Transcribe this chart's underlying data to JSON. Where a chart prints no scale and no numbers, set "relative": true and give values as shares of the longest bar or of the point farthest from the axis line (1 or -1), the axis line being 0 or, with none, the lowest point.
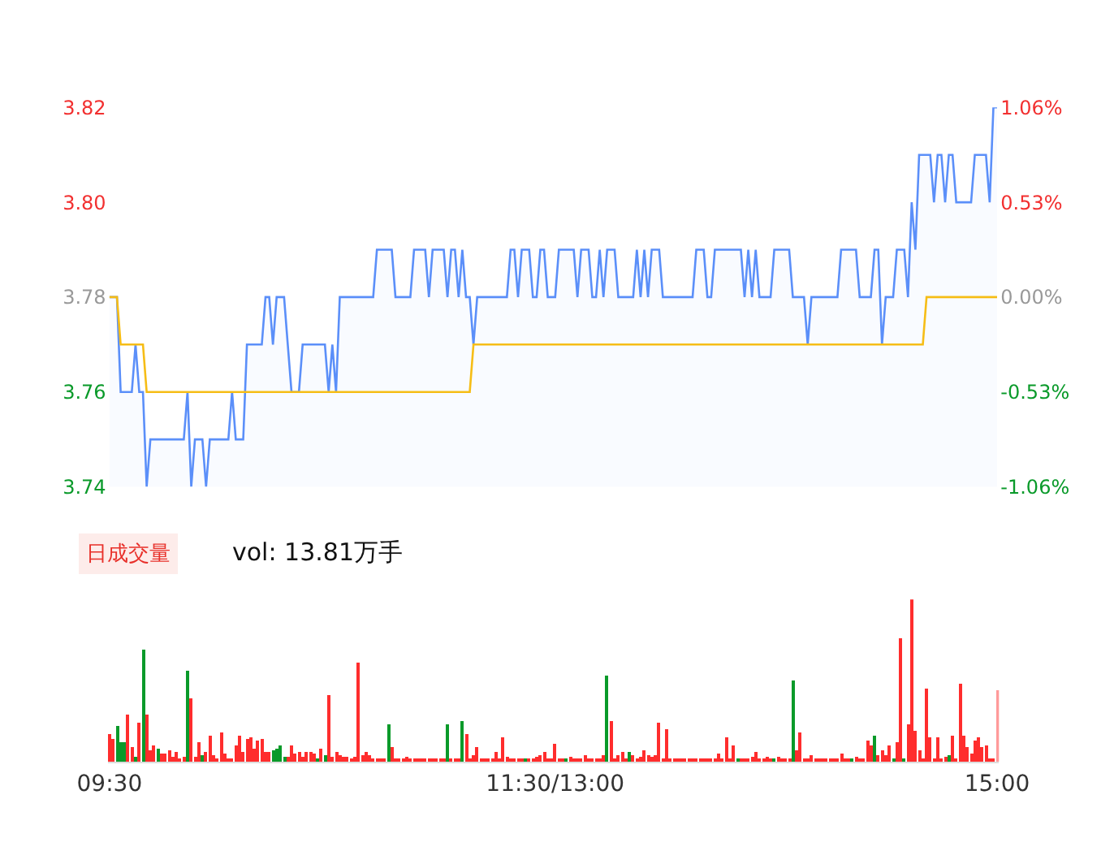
{
  "chart_data": [
    {
      "type": "line",
      "ylim": [
        3.74,
        3.82
      ],
      "tick_labels": "y",
      "yticks": [
        {
          "value": 3.74,
          "label": "3.74"
        },
        {
          "value": 3.76,
          "label": "3.76"
        },
        {
          "value": 3.78,
          "label": "3.78"
        },
        {
          "value": 3.8,
          "label": "3.80"
        },
        {
          "value": 3.82,
          "label": "3.82"
        }
      ],
      "y2lim": [
        -1.06,
        1.06
      ],
      "y2ticks": [
        {
          "value": -1.06,
          "label": "-1.06%"
        },
        {
          "value": -0.53,
          "label": "-0.53%"
        },
        {
          "value": 0,
          "label": "0.00%"
        },
        {
          "value": 0.53,
          "label": "0.53%"
        },
        {
          "value": 1.06,
          "label": "1.06%"
        }
      ],
      "series": [
        {
          "type": "area",
          "color": "#5b8ff9",
          "values": [
            3.78,
            3.78,
            3.78,
            3.76,
            3.76,
            3.76,
            3.76,
            3.77,
            3.76,
            3.76,
            3.74,
            3.75,
            3.75,
            3.75,
            3.75,
            3.75,
            3.75,
            3.75,
            3.75,
            3.75,
            3.75,
            3.76,
            3.74,
            3.75,
            3.75,
            3.75,
            3.74,
            3.75,
            3.75,
            3.75,
            3.75,
            3.75,
            3.75,
            3.76,
            3.75,
            3.75,
            3.75,
            3.77,
            3.77,
            3.77,
            3.77,
            3.77,
            3.78,
            3.78,
            3.77,
            3.78,
            3.78,
            3.78,
            3.77,
            3.76,
            3.76,
            3.76,
            3.77,
            3.77,
            3.77,
            3.77,
            3.77,
            3.77,
            3.77,
            3.76,
            3.77,
            3.76,
            3.78,
            3.78,
            3.78,
            3.78,
            3.78,
            3.78,
            3.78,
            3.78,
            3.78,
            3.78,
            3.79,
            3.79,
            3.79,
            3.79,
            3.79,
            3.78,
            3.78,
            3.78,
            3.78,
            3.78,
            3.79,
            3.79,
            3.79,
            3.79,
            3.78,
            3.79,
            3.79,
            3.79,
            3.79,
            3.78,
            3.79,
            3.79,
            3.78,
            3.79,
            3.78,
            3.78,
            3.77,
            3.78,
            3.78,
            3.78,
            3.78,
            3.78,
            3.78,
            3.78,
            3.78,
            3.78,
            3.79,
            3.79,
            3.78,
            3.79,
            3.79,
            3.79,
            3.78,
            3.78,
            3.79,
            3.79,
            3.78,
            3.78,
            3.78,
            3.79,
            3.79,
            3.79,
            3.79,
            3.79,
            3.78,
            3.79,
            3.79,
            3.79,
            3.78,
            3.78,
            3.79,
            3.78,
            3.79,
            3.79,
            3.79,
            3.78,
            3.78,
            3.78,
            3.78,
            3.78,
            3.79,
            3.78,
            3.79,
            3.78,
            3.79,
            3.79,
            3.79,
            3.78,
            3.78,
            3.78,
            3.78,
            3.78,
            3.78,
            3.78,
            3.78,
            3.78,
            3.79,
            3.79,
            3.79,
            3.78,
            3.78,
            3.79,
            3.79,
            3.79,
            3.79,
            3.79,
            3.79,
            3.79,
            3.79,
            3.78,
            3.79,
            3.78,
            3.79,
            3.78,
            3.78,
            3.78,
            3.78,
            3.79,
            3.79,
            3.79,
            3.79,
            3.79,
            3.78,
            3.78,
            3.78,
            3.78,
            3.77,
            3.78,
            3.78,
            3.78,
            3.78,
            3.78,
            3.78,
            3.78,
            3.78,
            3.79,
            3.79,
            3.79,
            3.79,
            3.79,
            3.78,
            3.78,
            3.78,
            3.78,
            3.79,
            3.79,
            3.77,
            3.78,
            3.78,
            3.78,
            3.79,
            3.79,
            3.79,
            3.78,
            3.8,
            3.79,
            3.81,
            3.81,
            3.81,
            3.81,
            3.8,
            3.81,
            3.81,
            3.8,
            3.81,
            3.81,
            3.8,
            3.8,
            3.8,
            3.8,
            3.8,
            3.81,
            3.81,
            3.81,
            3.81,
            3.8,
            3.82,
            3.82
          ]
        },
        {
          "type": "line",
          "color": "#f6bd16",
          "values": [
            3.78,
            3.78,
            3.78,
            3.77,
            3.77,
            3.77,
            3.77,
            3.77,
            3.77,
            3.77,
            3.76,
            3.76,
            3.76,
            3.76,
            3.76,
            3.76,
            3.76,
            3.76,
            3.76,
            3.76,
            3.76,
            3.76,
            3.76,
            3.76,
            3.76,
            3.76,
            3.76,
            3.76,
            3.76,
            3.76,
            3.76,
            3.76,
            3.76,
            3.76,
            3.76,
            3.76,
            3.76,
            3.76,
            3.76,
            3.76,
            3.76,
            3.76,
            3.76,
            3.76,
            3.76,
            3.76,
            3.76,
            3.76,
            3.76,
            3.76,
            3.76,
            3.76,
            3.76,
            3.76,
            3.76,
            3.76,
            3.76,
            3.76,
            3.76,
            3.76,
            3.76,
            3.76,
            3.76,
            3.76,
            3.76,
            3.76,
            3.76,
            3.76,
            3.76,
            3.76,
            3.76,
            3.76,
            3.76,
            3.76,
            3.76,
            3.76,
            3.76,
            3.76,
            3.76,
            3.76,
            3.76,
            3.76,
            3.76,
            3.76,
            3.76,
            3.76,
            3.76,
            3.76,
            3.76,
            3.76,
            3.76,
            3.76,
            3.76,
            3.76,
            3.76,
            3.76,
            3.76,
            3.76,
            3.77,
            3.77,
            3.77,
            3.77,
            3.77,
            3.77,
            3.77,
            3.77,
            3.77,
            3.77,
            3.77,
            3.77,
            3.77,
            3.77,
            3.77,
            3.77,
            3.77,
            3.77,
            3.77,
            3.77,
            3.77,
            3.77,
            3.77,
            3.77,
            3.77,
            3.77,
            3.77,
            3.77,
            3.77,
            3.77,
            3.77,
            3.77,
            3.77,
            3.77,
            3.77,
            3.77,
            3.77,
            3.77,
            3.77,
            3.77,
            3.77,
            3.77,
            3.77,
            3.77,
            3.77,
            3.77,
            3.77,
            3.77,
            3.77,
            3.77,
            3.77,
            3.77,
            3.77,
            3.77,
            3.77,
            3.77,
            3.77,
            3.77,
            3.77,
            3.77,
            3.77,
            3.77,
            3.77,
            3.77,
            3.77,
            3.77,
            3.77,
            3.77,
            3.77,
            3.77,
            3.77,
            3.77,
            3.77,
            3.77,
            3.77,
            3.77,
            3.77,
            3.77,
            3.77,
            3.77,
            3.77,
            3.77,
            3.77,
            3.77,
            3.77,
            3.77,
            3.77,
            3.77,
            3.77,
            3.77,
            3.77,
            3.77,
            3.77,
            3.77,
            3.77,
            3.77,
            3.77,
            3.77,
            3.77,
            3.77,
            3.77,
            3.77,
            3.77,
            3.77,
            3.77,
            3.77,
            3.77,
            3.77,
            3.77,
            3.77,
            3.77,
            3.77,
            3.77,
            3.77,
            3.77,
            3.77,
            3.77,
            3.77,
            3.77,
            3.77,
            3.77,
            3.77,
            3.78,
            3.78,
            3.78,
            3.78,
            3.78,
            3.78,
            3.78,
            3.78,
            3.78,
            3.78,
            3.78,
            3.78,
            3.78,
            3.78,
            3.78,
            3.78,
            3.78,
            3.78,
            3.78,
            3.78
          ]
        }
      ]
    },
    {
      "type": "bar",
      "relative": true,
      "tick_labels": "x",
      "annotations": [
        "日成交量",
        "vol: 13.81万手"
      ],
      "categories": [
        "09:30",
        null,
        null,
        null,
        null,
        null,
        null,
        null,
        null,
        null,
        null,
        null,
        null,
        null,
        null,
        null,
        null,
        null,
        null,
        null,
        null,
        null,
        null,
        null,
        null,
        null,
        null,
        null,
        null,
        null,
        null,
        null,
        null,
        null,
        null,
        null,
        null,
        null,
        null,
        null,
        null,
        null,
        null,
        null,
        null,
        null,
        null,
        null,
        null,
        null,
        null,
        null,
        null,
        null,
        null,
        null,
        null,
        null,
        null,
        null,
        null,
        null,
        null,
        null,
        null,
        null,
        null,
        null,
        null,
        null,
        null,
        null,
        null,
        null,
        null,
        null,
        null,
        null,
        null,
        null,
        null,
        null,
        null,
        null,
        null,
        null,
        null,
        null,
        null,
        null,
        null,
        null,
        null,
        null,
        null,
        null,
        null,
        null,
        null,
        null,
        null,
        null,
        null,
        null,
        null,
        null,
        null,
        null,
        null,
        null,
        null,
        null,
        null,
        null,
        null,
        null,
        null,
        null,
        null,
        null,
        "11:30/13:00",
        null,
        null,
        null,
        null,
        null,
        null,
        null,
        null,
        null,
        null,
        null,
        null,
        null,
        null,
        null,
        null,
        null,
        null,
        null,
        null,
        null,
        null,
        null,
        null,
        null,
        null,
        null,
        null,
        null,
        null,
        null,
        null,
        null,
        null,
        null,
        null,
        null,
        null,
        null,
        null,
        null,
        null,
        null,
        null,
        null,
        null,
        null,
        null,
        null,
        null,
        null,
        null,
        null,
        null,
        null,
        null,
        null,
        null,
        null,
        null,
        null,
        null,
        null,
        null,
        null,
        null,
        null,
        null,
        null,
        null,
        null,
        null,
        null,
        null,
        null,
        null,
        null,
        null,
        null,
        null,
        null,
        null,
        null,
        null,
        null,
        null,
        null,
        null,
        null,
        null,
        null,
        null,
        null,
        null,
        null,
        null,
        null,
        null,
        null,
        null,
        null,
        null,
        null,
        null,
        null,
        null,
        null,
        null,
        null,
        null,
        null,
        null,
        null,
        null,
        null,
        null,
        null,
        null,
        "15:00"
      ],
      "values": [
        0.17,
        0.14,
        0.22,
        0.12,
        0.12,
        0.29,
        0.09,
        0.03,
        0.24,
        0.69,
        0.29,
        0.07,
        0.1,
        0.08,
        0.05,
        0.05,
        0.07,
        0.03,
        0.06,
        0.02,
        0.03,
        0.56,
        0.39,
        0.03,
        0.12,
        0.04,
        0.06,
        0.16,
        0.04,
        0.02,
        0.18,
        0.05,
        0.02,
        0.01,
        0.1,
        0.16,
        0.06,
        0.14,
        0.15,
        0.08,
        0.13,
        0.14,
        0.06,
        0.06,
        0.07,
        0.08,
        0.1,
        0.03,
        0.03,
        0.1,
        0.05,
        0.06,
        0.03,
        0.06,
        0.06,
        0.05,
        0.02,
        0.08,
        0.04,
        0.41,
        0.03,
        0.06,
        0.04,
        0.03,
        0.03,
        0.02,
        0.03,
        0.61,
        0.04,
        0.06,
        0.04,
        0.02,
        0.01,
        0.01,
        0.01,
        0.23,
        0.09,
        0.01,
        0.02,
        0.01,
        0.03,
        0.01,
        0.01,
        0.01,
        0.01,
        0.02,
        0.02,
        0.01,
        0.01,
        0.01,
        0.01,
        0.23,
        0.01,
        0.02,
        0.01,
        0.25,
        0.17,
        0.01,
        0.04,
        0.09,
        0.01,
        0.01,
        0.01,
        0.01,
        0.06,
        0.01,
        0.15,
        0.03,
        0.01,
        0.01,
        0.01,
        0.01,
        0.01,
        0.01,
        0.01,
        0.03,
        0.04,
        0.06,
        0.02,
        0.02,
        0.11,
        0.01,
        0.01,
        0.02,
        0.03,
        0.01,
        0.02,
        0.01,
        0.04,
        0.02,
        0.01,
        0.01,
        0.01,
        0.04,
        0.53,
        0.25,
        0.02,
        0.04,
        0.06,
        0.02,
        0.06,
        0.04,
        0.02,
        0.03,
        0.07,
        0.04,
        0.03,
        0.04,
        0.24,
        0.01,
        0.2,
        0.01,
        0.01,
        0.01,
        0.01,
        0.01,
        0.01,
        0.01,
        0.02,
        0.01,
        0.01,
        0.01,
        0.02,
        0.02,
        0.05,
        0.02,
        0.15,
        0.02,
        0.1,
        0.01,
        0.01,
        0.02,
        0.01,
        0.03,
        0.06,
        0.01,
        0.02,
        0.03,
        0.02,
        0.02,
        0.03,
        0.02,
        0.02,
        0.02,
        0.5,
        0.07,
        0.18,
        0.02,
        0.01,
        0.04,
        0.01,
        0.01,
        0.01,
        0.01,
        0.02,
        0.01,
        0.02,
        0.05,
        0.02,
        0.02,
        0.02,
        0.03,
        0.02,
        0.01,
        0.13,
        0.1,
        0.16,
        0.04,
        0.07,
        0.04,
        0.1,
        0.01,
        0.12,
        0.76,
        0.02,
        0.23,
        1.0,
        0.19,
        0.07,
        0.02,
        0.45,
        0.15,
        0.02,
        0.15,
        0.01,
        0.03,
        0.04,
        0.16,
        0.01,
        0.48,
        0.16,
        0.09,
        0.05,
        0.13,
        0.15,
        0.09,
        0.1,
        0.01,
        0.01,
        0.44
      ],
      "colors": [
        "#ff2d2d",
        "#ff2d2d",
        "#0a9a2a",
        "#0a9a2a",
        "#0a9a2a",
        "#ff2d2d",
        "#ff2d2d",
        "#0a9a2a",
        "#ff2d2d",
        "#0a9a2a",
        "#ff2d2d",
        "#ff2d2d",
        "#ff2d2d",
        "#0a9a2a",
        "#ff2d2d",
        "#ff2d2d",
        "#ff2d2d",
        "#ff2d2d",
        "#ff2d2d",
        "#ff2d2d",
        "#ff2d2d",
        "#0a9a2a",
        "#ff2d2d",
        "#ff2d2d",
        "#ff2d2d",
        "#0a9a2a",
        "#ff2d2d",
        "#ff2d2d",
        "#ff2d2d",
        "#ff2d2d",
        "#ff2d2d",
        "#ff2d2d",
        "#ff2d2d",
        "#ff2d2d",
        "#ff2d2d",
        "#ff2d2d",
        "#ff2d2d",
        "#ff2d2d",
        "#ff2d2d",
        "#ff2d2d",
        "#ff2d2d",
        "#ff2d2d",
        "#ff2d2d",
        "#ff2d2d",
        "#0a9a2a",
        "#0a9a2a",
        "#0a9a2a",
        "#0a9a2a",
        "#ff2d2d",
        "#ff2d2d",
        "#ff2d2d",
        "#ff2d2d",
        "#ff2d2d",
        "#ff2d2d",
        "#ff2d2d",
        "#ff2d2d",
        "#0a9a2a",
        "#ff2d2d",
        "#0a9a2a",
        "#ff2d2d",
        "#ff2d2d",
        "#ff2d2d",
        "#ff2d2d",
        "#ff2d2d",
        "#ff2d2d",
        "#ff2d2d",
        "#ff2d2d",
        "#ff2d2d",
        "#ff2d2d",
        "#ff2d2d",
        "#ff2d2d",
        "#ff2d2d",
        "#ff2d2d",
        "#ff2d2d",
        "#ff2d2d",
        "#0a9a2a",
        "#ff2d2d",
        "#ff2d2d",
        "#ff2d2d",
        "#ff2d2d",
        "#ff2d2d",
        "#ff2d2d",
        "#ff2d2d",
        "#ff2d2d",
        "#ff2d2d",
        "#ff2d2d",
        "#ff2d2d",
        "#ff2d2d",
        "#ff2d2d",
        "#ff2d2d",
        "#ff2d2d",
        "#0a9a2a",
        "#ff2d2d",
        "#ff2d2d",
        "#ff2d2d",
        "#0a9a2a",
        "#ff2d2d",
        "#ff2d2d",
        "#ff2d2d",
        "#ff2d2d",
        "#ff2d2d",
        "#ff2d2d",
        "#ff2d2d",
        "#ff2d2d",
        "#ff2d2d",
        "#ff2d2d",
        "#ff2d2d",
        "#ff2d2d",
        "#ff2d2d",
        "#ff2d2d",
        "#ff2d2d",
        "#ff2d2d",
        "#0a9a2a",
        "#ff2d2d",
        "#ff2d2d",
        "#ff2d2d",
        "#ff2d2d",
        "#ff2d2d",
        "#ff2d2d",
        "#ff2d2d",
        "#ff2d2d",
        "#ff2d2d",
        "#ff2d2d",
        "#0a9a2a",
        "#ff2d2d",
        "#ff2d2d",
        "#ff2d2d",
        "#ff2d2d",
        "#ff2d2d",
        "#ff2d2d",
        "#ff2d2d",
        "#ff2d2d",
        "#ff2d2d",
        "#ff2d2d",
        "#0a9a2a",
        "#ff2d2d",
        "#ff2d2d",
        "#ff2d2d",
        "#ff2d2d",
        "#ff2d2d",
        "#0a9a2a",
        "#ff2d2d",
        "#ff2d2d",
        "#ff2d2d",
        "#ff2d2d",
        "#ff2d2d",
        "#ff2d2d",
        "#ff2d2d",
        "#ff2d2d",
        "#ff2d2d",
        "#ff2d2d",
        "#ff2d2d",
        "#ff2d2d",
        "#ff2d2d",
        "#ff2d2d",
        "#ff2d2d",
        "#ff2d2d",
        "#ff2d2d",
        "#ff2d2d",
        "#ff2d2d",
        "#ff2d2d",
        "#ff2d2d",
        "#ff2d2d",
        "#ff2d2d",
        "#ff2d2d",
        "#ff2d2d",
        "#ff2d2d",
        "#ff2d2d",
        "#ff2d2d",
        "#0a9a2a",
        "#ff2d2d",
        "#ff2d2d",
        "#ff2d2d",
        "#ff2d2d",
        "#ff2d2d",
        "#ff2d2d",
        "#ff2d2d",
        "#ff2d2d",
        "#ff2d2d",
        "#0a9a2a",
        "#ff2d2d",
        "#ff2d2d",
        "#ff2d2d",
        "#ff2d2d",
        "#0a9a2a",
        "#ff2d2d",
        "#ff2d2d",
        "#ff2d2d",
        "#ff2d2d",
        "#ff2d2d",
        "#ff2d2d",
        "#ff2d2d",
        "#ff2d2d",
        "#ff2d2d",
        "#ff2d2d",
        "#ff2d2d",
        "#ff2d2d",
        "#ff2d2d",
        "#ff2d2d",
        "#ff2d2d",
        "#0a9a2a",
        "#ff2d2d",
        "#ff2d2d",
        "#ff2d2d",
        "#ff2d2d",
        "#ff2d2d",
        "#0a9a2a",
        "#ff2d2d",
        "#ff2d2d",
        "#ff2d2d",
        "#ff2d2d",
        "#0a9a2a",
        "#ff2d2d",
        "#ff2d2d",
        "#0a9a2a",
        "#ff2d2d",
        "#ff2d2d",
        "#ff2d2d",
        "#ff2d2d",
        "#ff2d2d",
        "#ff2d2d",
        "#ff2d2d",
        "#ff2d2d",
        "#ff2d2d",
        "#ff2d2d",
        "#ff2d2d",
        "#0a9a2a",
        "#ff2d2d",
        "#ff2d2d",
        "#ff2d2d",
        "#ff2d2d",
        "#ff2d2d",
        "#ff2d2d",
        "#ff2d2d",
        "#ff2d2d",
        "#ff2d2d",
        "#ff2d2d",
        "#ff2d2d",
        "#ff2d2d",
        "#ff9a9a"
      ]
    }
  ]
}
